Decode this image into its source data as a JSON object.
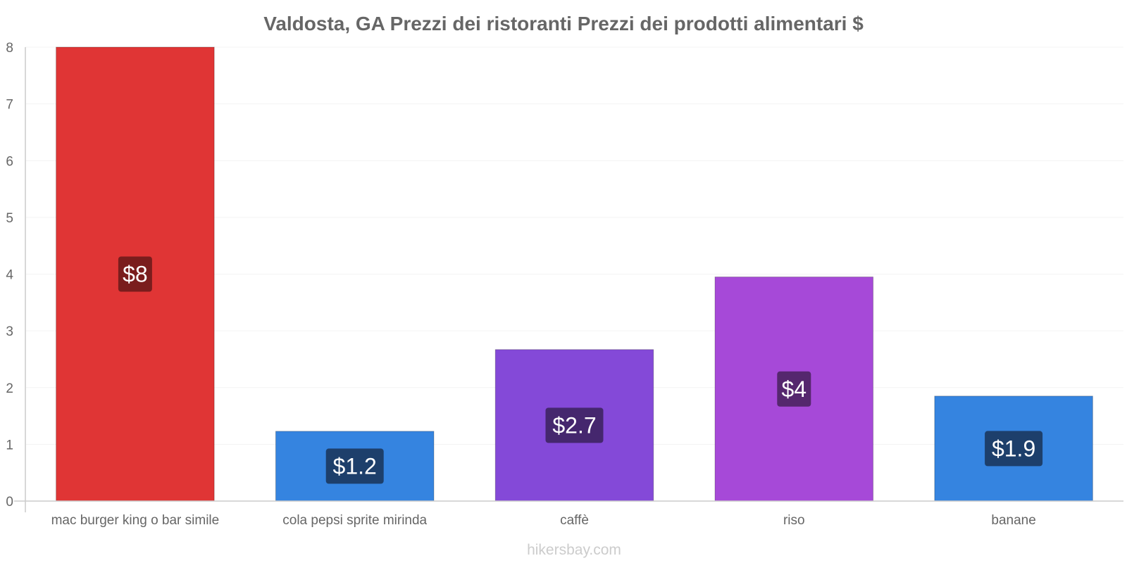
{
  "chart_data": {
    "type": "bar",
    "title": "Valdosta, GA Prezzi dei ristoranti Prezzi dei prodotti alimentari $",
    "xlabel": "",
    "ylabel": "",
    "ylim": [
      0,
      8
    ],
    "yticks": [
      "0",
      "1",
      "2",
      "3",
      "4",
      "5",
      "6",
      "7",
      "8"
    ],
    "categories": [
      "mac burger king o bar simile",
      "cola pepsi sprite mirinda",
      "caffè",
      "riso",
      "banane"
    ],
    "values": [
      8,
      1.23,
      2.67,
      3.95,
      1.85
    ],
    "data_labels": [
      "$8",
      "$1.2",
      "$2.7",
      "$4",
      "$1.9"
    ],
    "colors": [
      "#e03535",
      "#3584e0",
      "#8449d8",
      "#a649d8",
      "#3584e0"
    ],
    "label_bg_colors": [
      "#7a1d1d",
      "#1d3f6b",
      "#45276e",
      "#55276e",
      "#1d3f6b"
    ],
    "grid": true,
    "legend": "none"
  },
  "footer": {
    "credit": "hikersbay.com"
  }
}
